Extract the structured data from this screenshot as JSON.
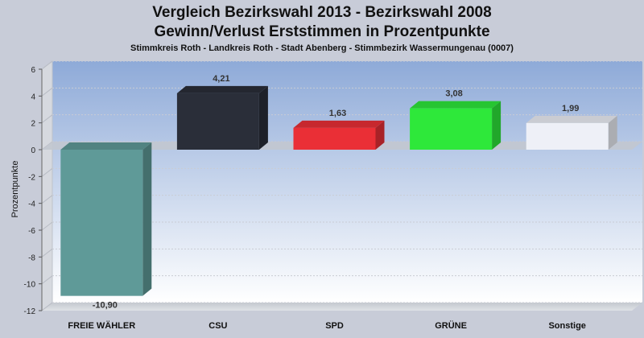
{
  "chart_data": {
    "type": "bar",
    "title": "Vergleich Bezirkswahl 2013 - Bezirkswahl 2008",
    "subtitle": "Gewinn/Verlust Erststimmen in Prozentpunkte",
    "subtitle2": "Stimmkreis Roth - Landkreis Roth - Stadt Abenberg - Stimmbezirk Wassermungenau (0007)",
    "ylabel": "Prozentpunkte",
    "xlabel": "",
    "ylim": [
      -12,
      6
    ],
    "yticks": [
      6,
      4,
      2,
      0,
      -2,
      -4,
      -6,
      -8,
      -10,
      -12
    ],
    "categories": [
      "FREIE WÄHLER",
      "CSU",
      "SPD",
      "GRÜNE",
      "Sonstige"
    ],
    "values": [
      -10.9,
      4.21,
      1.63,
      3.08,
      1.99
    ],
    "value_labels": [
      "-10,90",
      "4,21",
      "1,63",
      "3,08",
      "1,99"
    ],
    "colors": [
      "#5f9a98",
      "#2a2e39",
      "#ea2f36",
      "#2ee83a",
      "#eef0f7"
    ],
    "grid": true,
    "legend": "none"
  }
}
